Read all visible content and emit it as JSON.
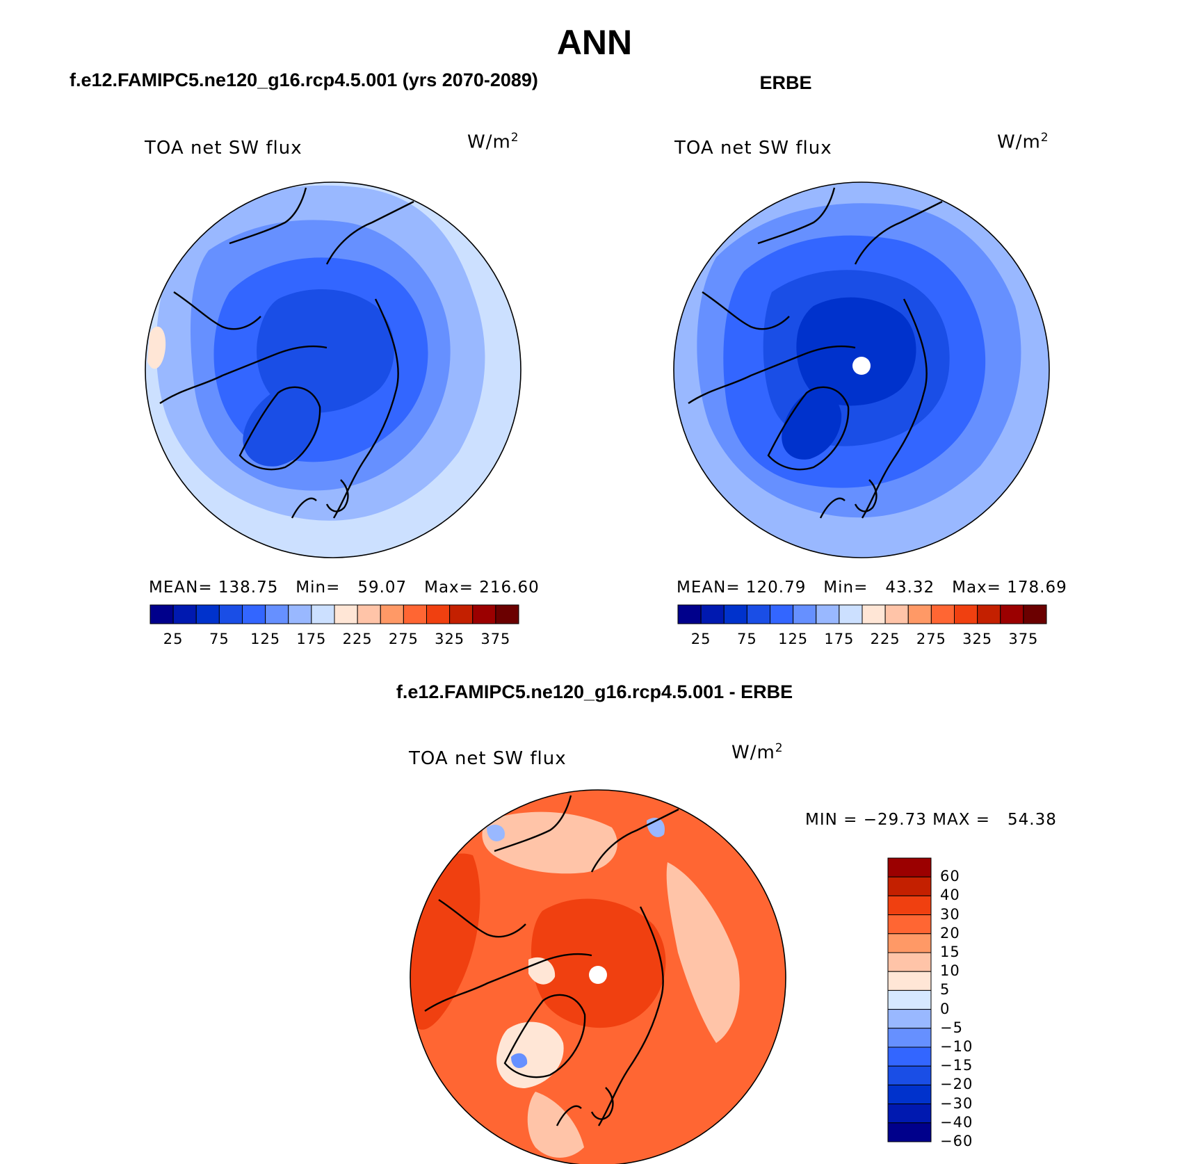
{
  "figure": {
    "title": "ANN",
    "diff_title": "f.e12.FAMIPC5.ne120_g16.rcp4.5.001 - ERBE"
  },
  "panels": [
    {
      "title": "f.e12.FAMIPC5.ne120_g16.rcp4.5.001 (yrs 2070-2089)",
      "variable": "TOA net SW flux",
      "units_base": "W/m",
      "units_sup": "2",
      "stats": "MEAN= 138.75   Min=   59.07   Max= 216.60",
      "mean": 138.75,
      "min": 59.07,
      "max": 216.6
    },
    {
      "title": "ERBE",
      "variable": "TOA net SW flux",
      "units_base": "W/m",
      "units_sup": "2",
      "stats": "MEAN= 120.79   Min=   43.32   Max= 178.69",
      "mean": 120.79,
      "min": 43.32,
      "max": 178.69
    },
    {
      "title": "f.e12.FAMIPC5.ne120_g16.rcp4.5.001 - ERBE",
      "variable": "TOA net SW flux",
      "units_base": "W/m",
      "units_sup": "2",
      "stats": "MIN = −29.73 MAX =   54.38",
      "min": -29.73,
      "max": 54.38
    }
  ],
  "abs_colorbar": {
    "colors": [
      "#00008b",
      "#0019b0",
      "#0032cc",
      "#1a4ee6",
      "#3366ff",
      "#6690ff",
      "#99b8ff",
      "#cce0ff",
      "#ffe6d6",
      "#ffc4a8",
      "#ff9966",
      "#ff6633",
      "#f04010",
      "#c42000",
      "#9b0000",
      "#6b0000"
    ],
    "tick_labels": [
      "25",
      "75",
      "125",
      "175",
      "225",
      "275",
      "325",
      "375"
    ]
  },
  "diff_colorbar": {
    "colors": [
      "#00008b",
      "#0019b0",
      "#0032cc",
      "#1a4ee6",
      "#3366ff",
      "#6690ff",
      "#99b8ff",
      "#d6e8ff",
      "#ffe6d6",
      "#ffc4a8",
      "#ff9966",
      "#ff6633",
      "#f04010",
      "#c42000",
      "#9b0000"
    ],
    "tick_labels": [
      "60",
      "40",
      "30",
      "20",
      "15",
      "10",
      "5",
      "0",
      "−5",
      "−10",
      "−15",
      "−20",
      "−30",
      "−40",
      "−60"
    ]
  },
  "map_fill": {
    "panel1": {
      "outer": "#cce0ff",
      "ring2": "#99b8ff",
      "ring3": "#6690ff",
      "ring4": "#3366ff",
      "core": "#1a4ee6"
    },
    "panel2": {
      "outer": "#99b8ff",
      "ring2": "#6690ff",
      "ring3": "#3366ff",
      "ring4": "#1a4ee6",
      "core": "#0032cc"
    },
    "panel3": {
      "outer": "#ff6633",
      "ring2": "#f04010",
      "land": "#ffc4a8",
      "pale": "#ffe6d6",
      "cold": "#99b8ff"
    }
  }
}
